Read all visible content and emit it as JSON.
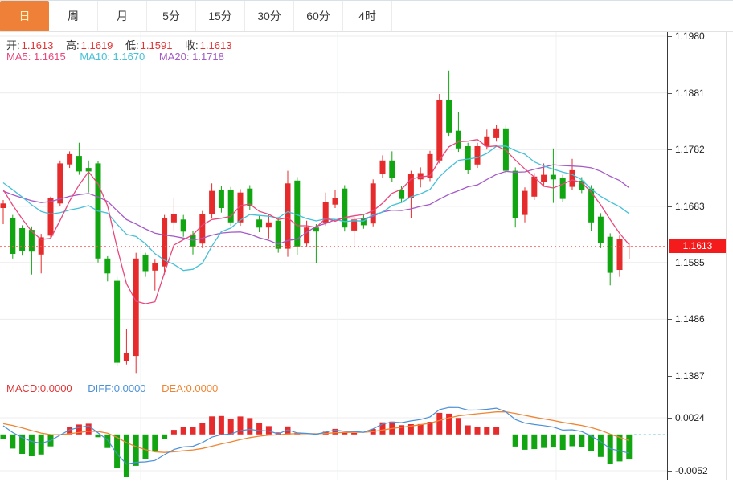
{
  "tabbar": {
    "tabs": [
      {
        "label": "日",
        "selected": true
      },
      {
        "label": "周",
        "selected": false
      },
      {
        "label": "月",
        "selected": false
      },
      {
        "label": "5分",
        "selected": false
      },
      {
        "label": "15分",
        "selected": false
      },
      {
        "label": "30分",
        "selected": false
      },
      {
        "label": "60分",
        "selected": false
      },
      {
        "label": "4时",
        "selected": false
      }
    ]
  },
  "ohlc_legend": {
    "open_label": "开:",
    "open_value": "1.1613",
    "high_label": "高:",
    "high_value": "1.1619",
    "low_label": "低:",
    "low_value": "1.1591",
    "close_label": "收:",
    "close_value": "1.1613"
  },
  "ma_legend": {
    "ma5": "MA5: 1.1615",
    "ma10": "MA10: 1.1670",
    "ma20": "MA20: 1.1718"
  },
  "macd_legend": {
    "macd": "MACD:0.0000",
    "diff": "DIFF:0.0000",
    "dea": "DEA:0.0000"
  },
  "current_price": "1.1613",
  "colors": {
    "up": "#e52b2b",
    "down": "#12a512",
    "ma5": "#e8487c",
    "ma10": "#44c0d8",
    "ma20": "#a55ac8",
    "diff": "#4a90d9",
    "dea": "#ef8532",
    "price_line": "#ff5252",
    "badge_bg": "#f31b1b",
    "tab_selected_bg": "#ee8137",
    "grid": "#ececec",
    "vgrid": "#edf1f4",
    "zero_dash": "#9ed7e6"
  },
  "chart_data": {
    "type": "candlestick",
    "convention": "red = up (close >= open), green = down",
    "panels": [
      {
        "name": "price",
        "y_axis_ticks": [
          1.198,
          1.1881,
          1.1782,
          1.1683,
          1.1585,
          1.1486,
          1.1387
        ],
        "current_price": 1.1613,
        "overlays": [
          "MA5",
          "MA10",
          "MA20"
        ],
        "ma_values": {
          "MA5": 1.1615,
          "MA10": 1.167,
          "MA20": 1.1718
        },
        "candles_ohlc_order": [
          "open",
          "high",
          "low",
          "close"
        ],
        "candles": [
          [
            1.168,
            1.1694,
            1.1652,
            1.1688
          ],
          [
            1.1662,
            1.1668,
            1.1592,
            1.16
          ],
          [
            1.1645,
            1.165,
            1.1597,
            1.1605
          ],
          [
            1.1642,
            1.1648,
            1.1564,
            1.1604
          ],
          [
            1.1599,
            1.1635,
            1.1566,
            1.1629
          ],
          [
            1.1632,
            1.17,
            1.1627,
            1.1697
          ],
          [
            1.1688,
            1.1763,
            1.1683,
            1.1758
          ],
          [
            1.1756,
            1.1779,
            1.175,
            1.1774
          ],
          [
            1.1771,
            1.1794,
            1.1738,
            1.1744
          ],
          [
            1.175,
            1.1763,
            1.1707,
            1.1744
          ],
          [
            1.1758,
            1.1762,
            1.1585,
            1.1592
          ],
          [
            1.1592,
            1.1596,
            1.1552,
            1.1566
          ],
          [
            1.1553,
            1.156,
            1.1405,
            1.141
          ],
          [
            1.1413,
            1.1469,
            1.1407,
            1.1427
          ],
          [
            1.1422,
            1.1602,
            1.1392,
            1.1592
          ],
          [
            1.1598,
            1.1602,
            1.156,
            1.157
          ],
          [
            1.1571,
            1.159,
            1.1536,
            1.1584
          ],
          [
            1.1578,
            1.1668,
            1.1564,
            1.1662
          ],
          [
            1.1655,
            1.1697,
            1.1639,
            1.1669
          ],
          [
            1.166,
            1.1668,
            1.163,
            1.1639
          ],
          [
            1.1634,
            1.164,
            1.1599,
            1.1613
          ],
          [
            1.1618,
            1.1675,
            1.161,
            1.1669
          ],
          [
            1.1669,
            1.1723,
            1.1662,
            1.171
          ],
          [
            1.1712,
            1.1718,
            1.1672,
            1.168
          ],
          [
            1.1711,
            1.1717,
            1.1649,
            1.1655
          ],
          [
            1.1655,
            1.1713,
            1.1649,
            1.1707
          ],
          [
            1.1714,
            1.172,
            1.1677,
            1.1683
          ],
          [
            1.166,
            1.1666,
            1.1638,
            1.1646
          ],
          [
            1.1646,
            1.1669,
            1.1627,
            1.1655
          ],
          [
            1.1658,
            1.1664,
            1.1602,
            1.1609
          ],
          [
            1.1609,
            1.1745,
            1.1595,
            1.1723
          ],
          [
            1.1728,
            1.1734,
            1.1598,
            1.1613
          ],
          [
            1.1618,
            1.1658,
            1.1612,
            1.1646
          ],
          [
            1.1646,
            1.1652,
            1.1584,
            1.1639
          ],
          [
            1.1655,
            1.1707,
            1.1649,
            1.169
          ],
          [
            1.1686,
            1.1711,
            1.168,
            1.1697
          ],
          [
            1.1714,
            1.172,
            1.1639,
            1.1646
          ],
          [
            1.1641,
            1.1666,
            1.1615,
            1.166
          ],
          [
            1.1662,
            1.1668,
            1.1644,
            1.165
          ],
          [
            1.1653,
            1.173,
            1.1648,
            1.1723
          ],
          [
            1.1739,
            1.1772,
            1.1732,
            1.1763
          ],
          [
            1.1763,
            1.1779,
            1.1726,
            1.1732
          ],
          [
            1.1711,
            1.1718,
            1.169,
            1.1696
          ],
          [
            1.1697,
            1.1745,
            1.1662,
            1.1739
          ],
          [
            1.173,
            1.1751,
            1.1716,
            1.1741
          ],
          [
            1.1732,
            1.178,
            1.1727,
            1.1774
          ],
          [
            1.1763,
            1.1879,
            1.1758,
            1.1868
          ],
          [
            1.1868,
            1.192,
            1.1806,
            1.1812
          ],
          [
            1.1815,
            1.1847,
            1.1778,
            1.1784
          ],
          [
            1.1788,
            1.1794,
            1.174,
            1.1746
          ],
          [
            1.1756,
            1.1794,
            1.175,
            1.1788
          ],
          [
            1.1788,
            1.1817,
            1.1782,
            1.1805
          ],
          [
            1.1802,
            1.1825,
            1.1796,
            1.1819
          ],
          [
            1.1819,
            1.1825,
            1.1739,
            1.1745
          ],
          [
            1.1745,
            1.1751,
            1.1646,
            1.1662
          ],
          [
            1.1668,
            1.1716,
            1.1655,
            1.171
          ],
          [
            1.17,
            1.1741,
            1.1694,
            1.1735
          ],
          [
            1.1725,
            1.1758,
            1.1719,
            1.1738
          ],
          [
            1.1738,
            1.1784,
            1.1689,
            1.173
          ],
          [
            1.1732,
            1.1738,
            1.169,
            1.1696
          ],
          [
            1.1717,
            1.1766,
            1.1711,
            1.1746
          ],
          [
            1.1728,
            1.1734,
            1.1706,
            1.1712
          ],
          [
            1.1714,
            1.172,
            1.164,
            1.1655
          ],
          [
            1.1665,
            1.1671,
            1.161,
            1.1619
          ],
          [
            1.163,
            1.1636,
            1.1545,
            1.1567
          ],
          [
            1.1572,
            1.1632,
            1.156,
            1.1626
          ],
          [
            1.1613,
            1.1619,
            1.1591,
            1.1613
          ]
        ]
      },
      {
        "name": "MACD",
        "y_axis_ticks": [
          0.0024,
          -0.0052
        ],
        "displayed_values": {
          "MACD": "0.0000",
          "DIFF": "0.0000",
          "DEA": "0.0000"
        }
      }
    ]
  }
}
